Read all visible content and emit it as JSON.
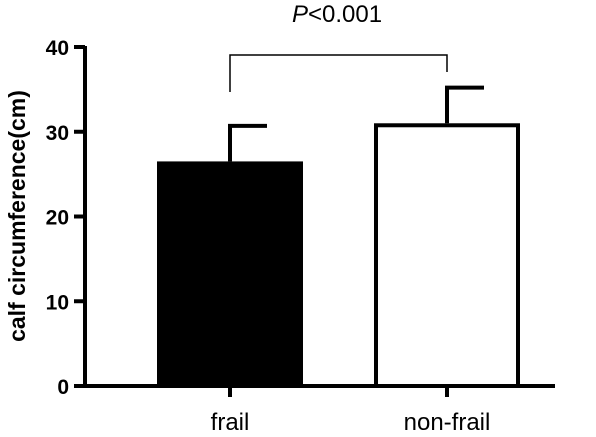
{
  "chart_data": {
    "type": "bar",
    "title": "",
    "xlabel": "",
    "ylabel": "calf circumference(cm)",
    "ylim": [
      0,
      40
    ],
    "yticks": [
      0,
      10,
      20,
      30,
      40
    ],
    "categories": [
      "frail",
      "non-frail"
    ],
    "values": [
      26.5,
      31.0
    ],
    "error_upper": [
      4.2,
      4.2
    ],
    "bar_fill": [
      "#000000",
      "#ffffff"
    ],
    "bar_stroke": "#000000",
    "grid": false,
    "legend": "none",
    "annotations": [
      {
        "type": "significance-bracket",
        "between": [
          "frail",
          "non-frail"
        ],
        "label_italic": "P",
        "label_rest": "<0.001"
      }
    ]
  }
}
